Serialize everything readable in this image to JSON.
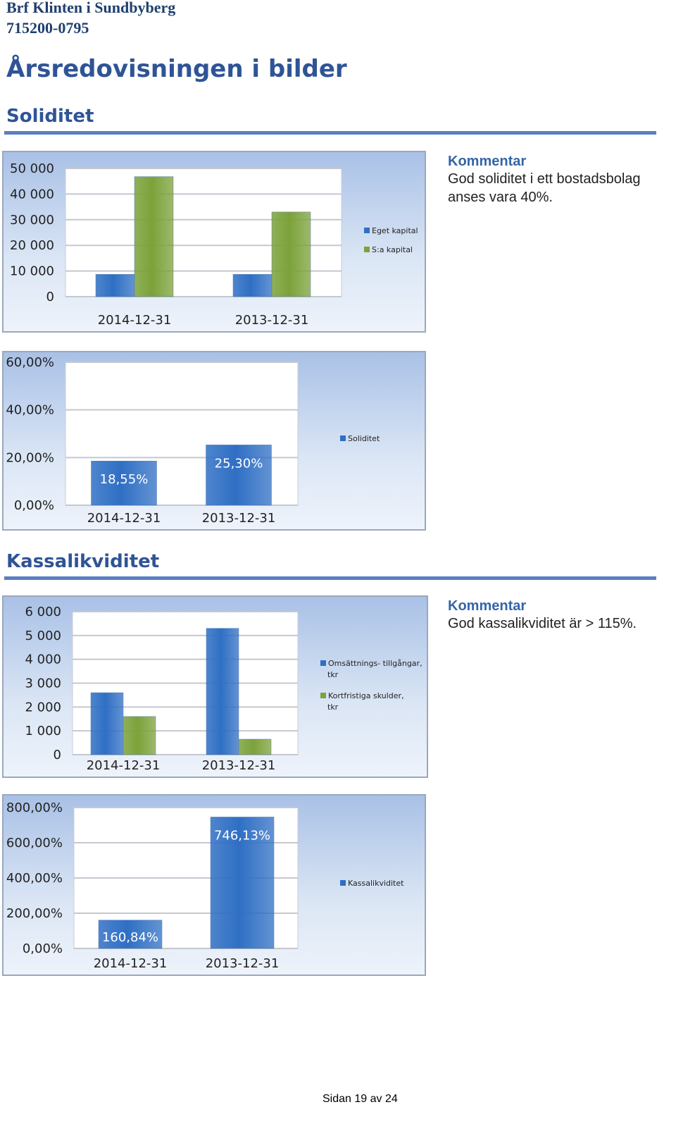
{
  "header": {
    "org": "Brf Klinten i Sundbyberg",
    "orgnr": "715200-0795"
  },
  "title": "Årsredovisningen i bilder",
  "sections": {
    "soliditet": "Soliditet",
    "kassalikviditet": "Kassalikviditet"
  },
  "comments": {
    "soliditet": {
      "title": "Kommentar",
      "text": "God soliditet i ett bostadsbolag anses vara 40%."
    },
    "kassalikviditet": {
      "title": "Kommentar",
      "text": "God kassalikviditet är > 115%."
    }
  },
  "footer": "Sidan 19 av 24",
  "colors": {
    "blue": "#2f6fc4",
    "green": "#7ca23a",
    "rule": "#5b7fbf"
  },
  "chart_data": [
    {
      "type": "bar",
      "categories": [
        "2014-12-31",
        "2013-12-31"
      ],
      "series": [
        {
          "name": "Eget kapital",
          "values": [
            8700,
            8700
          ]
        },
        {
          "name": "S:a kapital",
          "values": [
            46800,
            33000
          ]
        }
      ],
      "ylim": [
        0,
        50000
      ],
      "yticks": [
        0,
        10000,
        20000,
        30000,
        40000,
        50000
      ],
      "ytick_labels": [
        "0",
        "10 000",
        "20 000",
        "30 000",
        "40 000",
        "50 000"
      ],
      "legend": "right"
    },
    {
      "type": "bar",
      "categories": [
        "2014-12-31",
        "2013-12-31"
      ],
      "series": [
        {
          "name": "Soliditet",
          "values": [
            18.55,
            25.3
          ]
        }
      ],
      "data_labels": [
        "18,55%",
        "25,30%"
      ],
      "ylim": [
        0,
        60
      ],
      "yticks": [
        0,
        20,
        40,
        60
      ],
      "ytick_labels": [
        "0,00%",
        "20,00%",
        "40,00%",
        "60,00%"
      ],
      "legend": "right"
    },
    {
      "type": "bar",
      "categories": [
        "2014-12-31",
        "2013-12-31"
      ],
      "series": [
        {
          "name": "Omsättnings- tillgångar, tkr",
          "values": [
            2600,
            5300
          ]
        },
        {
          "name": "Kortfristiga skulder, tkr",
          "values": [
            1600,
            650
          ]
        }
      ],
      "ylim": [
        0,
        6000
      ],
      "yticks": [
        0,
        1000,
        2000,
        3000,
        4000,
        5000,
        6000
      ],
      "ytick_labels": [
        "0",
        "1 000",
        "2 000",
        "3 000",
        "4 000",
        "5 000",
        "6 000"
      ],
      "legend": "right"
    },
    {
      "type": "bar",
      "categories": [
        "2014-12-31",
        "2013-12-31"
      ],
      "series": [
        {
          "name": "Kassalikviditet",
          "values": [
            160.84,
            746.13
          ]
        }
      ],
      "data_labels": [
        "160,84%",
        "746,13%"
      ],
      "ylim": [
        0,
        800
      ],
      "yticks": [
        0,
        200,
        400,
        600,
        800
      ],
      "ytick_labels": [
        "0,00%",
        "200,00%",
        "400,00%",
        "600,00%",
        "800,00%"
      ],
      "legend": "right"
    }
  ]
}
